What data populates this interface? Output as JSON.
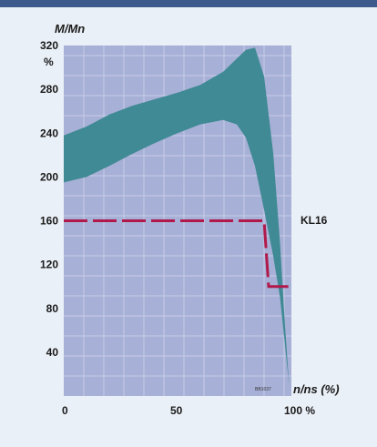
{
  "chart_data": {
    "type": "area",
    "title": "",
    "xlabel": "n/ns (%)",
    "ylabel": "M/Mn",
    "y_unit": "%",
    "x_ticks": [
      "0",
      "50",
      "100 %"
    ],
    "y_ticks": [
      "40",
      "80",
      "120",
      "160",
      "200",
      "240",
      "280",
      "320"
    ],
    "xlim": [
      0,
      100
    ],
    "ylim": [
      0,
      320
    ],
    "grid": true,
    "figure_code": "BB1037",
    "band": {
      "x": [
        0,
        10,
        20,
        30,
        40,
        50,
        60,
        70,
        76,
        80,
        84,
        88,
        92,
        95,
        97,
        99
      ],
      "upper": [
        238,
        246,
        257,
        265,
        271,
        277,
        284,
        296,
        308,
        316,
        318,
        292,
        222,
        140,
        70,
        10
      ],
      "lower": [
        195,
        200,
        210,
        221,
        231,
        240,
        248,
        252,
        248,
        236,
        210,
        170,
        128,
        90,
        50,
        10
      ]
    },
    "series": [
      {
        "name": "KL16",
        "x": [
          0,
          88,
          90,
          100
        ],
        "y": [
          160,
          160,
          100,
          100
        ],
        "color": "#b0194a",
        "style": "dashed"
      }
    ],
    "colors": {
      "band": "#3f8a94",
      "plot_background": "#a7b0d6",
      "grid": "#c7cde8",
      "header": "#3d5a8c"
    }
  }
}
